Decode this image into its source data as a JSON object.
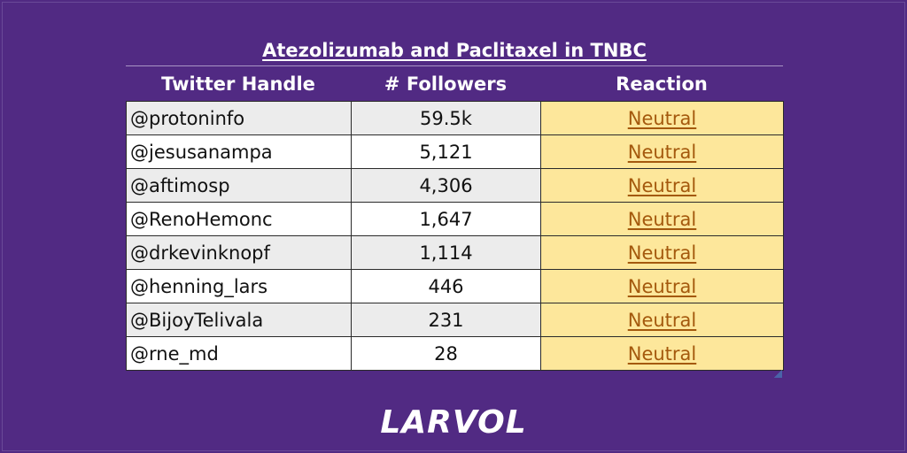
{
  "title": "Atezolizumab and Paclitaxel in TNBC",
  "table": {
    "headers": [
      "Twitter Handle",
      "# Followers",
      "Reaction"
    ],
    "rows": [
      {
        "handle": "@protoninfo",
        "followers": "59.5k",
        "reaction": "Neutral"
      },
      {
        "handle": "@jesusanampa",
        "followers": "5,121",
        "reaction": "Neutral"
      },
      {
        "handle": "@aftimosp",
        "followers": "4,306",
        "reaction": "Neutral"
      },
      {
        "handle": "@RenoHemonc",
        "followers": "1,647",
        "reaction": "Neutral"
      },
      {
        "handle": "@drkevinknopf",
        "followers": "1,114",
        "reaction": "Neutral"
      },
      {
        "handle": "@henning_lars",
        "followers": "446",
        "reaction": "Neutral"
      },
      {
        "handle": "@BijoyTelivala",
        "followers": "231",
        "reaction": "Neutral"
      },
      {
        "handle": "@rne_md",
        "followers": "28",
        "reaction": "Neutral"
      }
    ]
  },
  "logo": "LARVOL",
  "colors": {
    "background": "#512a83",
    "reaction_cell": "#fde79b",
    "link": "#a4590d",
    "shaded_row": "#ececec"
  }
}
